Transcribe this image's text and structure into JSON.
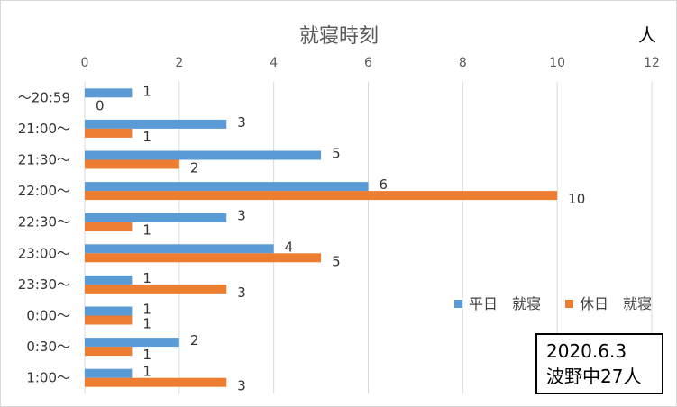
{
  "chart_data": {
    "type": "bar",
    "orientation": "horizontal",
    "title": "就寝時刻",
    "unit_label": "人",
    "x_axis_position": "top",
    "xlim": [
      0,
      12
    ],
    "x_ticks": [
      0,
      2,
      4,
      6,
      8,
      10,
      12
    ],
    "grid": true,
    "legend_position": "right",
    "categories": [
      "～20:59",
      "21:00～",
      "21:30～",
      "22:00～",
      "22:30～",
      "23:00～",
      "23:30～",
      "0:00～",
      "0:30～",
      "1:00～"
    ],
    "series": [
      {
        "name": "平日　就寝",
        "color": "#5b9bd5",
        "values": [
          1,
          3,
          5,
          6,
          3,
          4,
          1,
          1,
          2,
          1
        ]
      },
      {
        "name": "休日　就寝",
        "color": "#ed7d31",
        "values": [
          0,
          1,
          2,
          10,
          1,
          5,
          3,
          1,
          1,
          3
        ]
      }
    ]
  },
  "note": {
    "date": "2020.6.3",
    "group": "波野中27人"
  }
}
